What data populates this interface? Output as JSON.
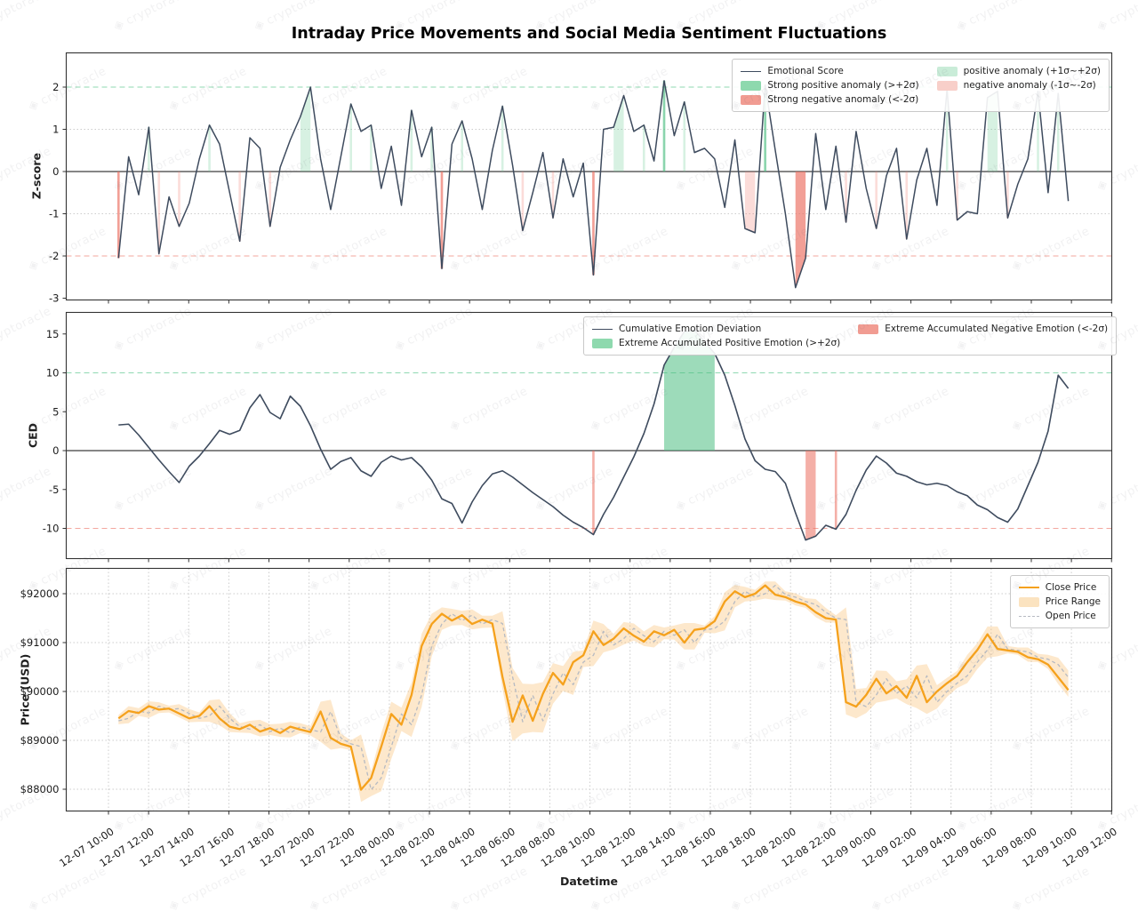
{
  "title": "Intraday Price Movements and Social Media Sentiment Fluctuations",
  "watermark": {
    "text": "cryptoracle",
    "glyph": "◈"
  },
  "colors": {
    "sentiment_line": "#3e4b5e",
    "strong_positive_fill": "rgba(77,190,130,0.55)",
    "mild_positive_fill": "rgba(110,205,152,0.28)",
    "strong_negative_fill": "rgba(235,110,95,0.55)",
    "mild_negative_fill": "rgba(240,130,120,0.28)",
    "upper_threshold_line": "#8fd9b2",
    "lower_threshold_line": "#f3a79e",
    "zero_line": "#3f3f3f",
    "grid": "#cccccc",
    "axis": "#333333",
    "close_line": "#f5a11c",
    "price_band_fill": "rgba(248,185,95,0.32)",
    "open_line": "#b6bac2",
    "legend_strong_pos": "#8ed9ae",
    "legend_mild_pos": "#c9ecd8",
    "legend_strong_neg": "#f19c92",
    "legend_mild_neg": "#f8cfc9"
  },
  "xaxis": {
    "label": "Datetime",
    "ticks": [
      "12-07 10:00",
      "12-07 12:00",
      "12-07 14:00",
      "12-07 16:00",
      "12-07 18:00",
      "12-07 20:00",
      "12-07 22:00",
      "12-08 00:00",
      "12-08 02:00",
      "12-08 04:00",
      "12-08 06:00",
      "12-08 08:00",
      "12-08 10:00",
      "12-08 12:00",
      "12-08 14:00",
      "12-08 16:00",
      "12-08 18:00",
      "12-08 20:00",
      "12-08 22:00",
      "12-09 00:00",
      "12-09 02:00",
      "12-09 04:00",
      "12-09 06:00",
      "12-09 08:00",
      "12-09 10:00",
      "12-09 12:00"
    ]
  },
  "panels": {
    "zscore": {
      "ylabel": "Z-score",
      "yticks": [
        "2",
        "1",
        "0",
        "-1",
        "-2",
        "-3"
      ],
      "legend_columns": [
        [
          {
            "swatch": "line",
            "label": "Emotional Score"
          },
          {
            "swatch": "strong_pos",
            "label": "Strong positive anomaly (>+2σ)"
          },
          {
            "swatch": "strong_neg",
            "label": "Strong negative anomaly (<-2σ)"
          }
        ],
        [
          {
            "swatch": "mild_pos",
            "label": "positive anomaly (+1σ~+2σ)"
          },
          {
            "swatch": "mild_neg",
            "label": "negative anomaly (-1σ~-2σ)"
          }
        ]
      ]
    },
    "ced": {
      "ylabel": "CED",
      "yticks": [
        "15",
        "10",
        "5",
        "0",
        "-5",
        "-10"
      ],
      "legend_columns": [
        [
          {
            "swatch": "line",
            "label": "Cumulative Emotion Deviation"
          },
          {
            "swatch": "strong_pos",
            "label": "Extreme Accumulated Positive Emotion (>+2σ)"
          }
        ],
        [
          {
            "swatch": "strong_neg",
            "label": "Extreme Accumulated Negative Emotion (<-2σ)"
          }
        ]
      ]
    },
    "price": {
      "ylabel": "Price (USD)",
      "yticks": [
        "$92000",
        "$91000",
        "$90000",
        "$89000",
        "$88000"
      ],
      "legend_columns": [
        [
          {
            "swatch": "close_line",
            "label": "Close Price"
          },
          {
            "swatch": "band",
            "label": "Price Range"
          },
          {
            "swatch": "open_dash",
            "label": "Open Price"
          }
        ]
      ]
    }
  },
  "chart_data": [
    {
      "type": "line",
      "name": "Emotional Score (Z-score)",
      "ylabel": "Z-score",
      "x_start": "12-07 10:30",
      "x_step_minutes": 30,
      "ylim": [
        -3.05,
        2.8
      ],
      "yticks": [
        2,
        1,
        0,
        -1,
        -2,
        -3
      ],
      "grid_dotted_at": [
        1,
        -1
      ],
      "thresholds": {
        "strong_upper": 2,
        "strong_lower": -2,
        "mild_upper": 1,
        "mild_lower": -1
      },
      "legend_position": "upper right",
      "series": [
        {
          "name": "Emotional Score",
          "values": [
            -2.05,
            0.35,
            -0.55,
            1.05,
            -1.95,
            -0.6,
            -1.3,
            -0.75,
            0.3,
            1.1,
            0.65,
            -0.5,
            -1.65,
            0.8,
            0.55,
            -1.3,
            0.1,
            0.75,
            1.3,
            2.0,
            0.3,
            -0.9,
            0.35,
            1.6,
            0.95,
            1.1,
            -0.4,
            0.6,
            -0.8,
            1.45,
            0.35,
            1.05,
            -2.3,
            0.65,
            1.2,
            0.3,
            -0.9,
            0.5,
            1.55,
            0.15,
            -1.4,
            -0.5,
            0.45,
            -1.1,
            0.3,
            -0.6,
            0.2,
            -2.45,
            1.0,
            1.05,
            1.8,
            0.95,
            1.1,
            0.25,
            2.15,
            0.85,
            1.65,
            0.45,
            0.55,
            0.3,
            -0.85,
            0.75,
            -1.35,
            -1.45,
            2.05,
            0.5,
            -1.0,
            -2.75,
            -2.05,
            0.9,
            -0.9,
            0.6,
            -1.2,
            0.95,
            -0.4,
            -1.35,
            -0.1,
            0.55,
            -1.6,
            -0.2,
            0.55,
            -0.8,
            1.95,
            -1.15,
            -0.95,
            -1.0,
            1.75,
            1.9,
            -1.1,
            -0.3,
            0.3,
            1.9,
            -0.5,
            1.85,
            -0.7
          ]
        }
      ]
    },
    {
      "type": "line",
      "name": "Cumulative Emotion Deviation",
      "ylabel": "CED",
      "x_start": "12-07 10:30",
      "x_step_minutes": 30,
      "ylim": [
        -13.8,
        17.7
      ],
      "yticks": [
        15,
        10,
        5,
        0,
        -5,
        -10
      ],
      "grid_dotted_at": [],
      "thresholds": {
        "strong_upper": 10,
        "strong_lower": -10
      },
      "legend_position": "upper center",
      "series": [
        {
          "name": "Cumulative Emotion Deviation",
          "values": [
            3.3,
            3.4,
            2.0,
            0.4,
            -1.2,
            -2.7,
            -4.1,
            -2.0,
            -0.7,
            0.9,
            2.6,
            2.1,
            2.6,
            5.5,
            7.2,
            4.9,
            4.1,
            7.0,
            5.7,
            3.2,
            0.2,
            -2.4,
            -1.4,
            -0.9,
            -2.6,
            -3.3,
            -1.5,
            -0.7,
            -1.2,
            -0.9,
            -2.1,
            -3.8,
            -6.2,
            -6.8,
            -9.3,
            -6.6,
            -4.5,
            -3.0,
            -2.6,
            -3.4,
            -4.4,
            -5.4,
            -6.3,
            -7.2,
            -8.3,
            -9.2,
            -9.9,
            -10.8,
            -8.2,
            -6.0,
            -3.4,
            -0.8,
            2.2,
            6.0,
            11.0,
            13.3,
            15.3,
            15.5,
            14.0,
            12.5,
            9.7,
            5.8,
            1.5,
            -1.3,
            -2.4,
            -2.7,
            -4.2,
            -8.0,
            -11.5,
            -11.0,
            -9.6,
            -10.1,
            -8.2,
            -5.1,
            -2.5,
            -0.7,
            -1.6,
            -2.9,
            -3.3,
            -4.0,
            -4.4,
            -4.2,
            -4.5,
            -5.3,
            -5.8,
            -7.0,
            -7.6,
            -8.6,
            -9.2,
            -7.5,
            -4.5,
            -1.5,
            2.5,
            9.7,
            8.0
          ]
        }
      ]
    },
    {
      "type": "line",
      "name": "Price (USD)",
      "ylabel": "Price (USD)",
      "x_start": "12-07 10:30",
      "x_step_minutes": 30,
      "ylim": [
        87550,
        92510
      ],
      "yticks": [
        92000,
        91000,
        90000,
        89000,
        88000
      ],
      "grid_dotted_at": [
        92000,
        91000,
        90000,
        89000,
        88000
      ],
      "legend_position": "upper right",
      "series": [
        {
          "name": "Close Price",
          "values": [
            89450,
            89600,
            89560,
            89700,
            89630,
            89650,
            89550,
            89450,
            89500,
            89700,
            89450,
            89280,
            89230,
            89320,
            89180,
            89250,
            89150,
            89280,
            89220,
            89170,
            89590,
            89050,
            88930,
            88870,
            87990,
            88230,
            88870,
            89540,
            89320,
            89930,
            90930,
            91380,
            91590,
            91450,
            91560,
            91380,
            91470,
            91390,
            90300,
            89380,
            89920,
            89400,
            89950,
            90380,
            90140,
            90600,
            90740,
            91230,
            90950,
            91080,
            91290,
            91140,
            91020,
            91230,
            91150,
            91260,
            91000,
            91260,
            91290,
            91440,
            91840,
            92050,
            91930,
            92000,
            92170,
            91980,
            91930,
            91840,
            91780,
            91620,
            91500,
            91470,
            89780,
            89690,
            89930,
            90260,
            89960,
            90110,
            89870,
            90320,
            89780,
            90000,
            90170,
            90320,
            90600,
            90850,
            91170,
            90870,
            90840,
            90810,
            90700,
            90660,
            90550,
            90290,
            90030
          ]
        },
        {
          "name": "Open Price",
          "values": [
            89400,
            89450,
            89600,
            89560,
            89700,
            89630,
            89650,
            89550,
            89450,
            89500,
            89700,
            89450,
            89280,
            89230,
            89320,
            89180,
            89250,
            89150,
            89280,
            89220,
            89170,
            89590,
            89050,
            88930,
            88870,
            87990,
            88230,
            88870,
            89540,
            89320,
            89930,
            90930,
            91380,
            91590,
            91450,
            91560,
            91380,
            91470,
            91390,
            90300,
            89380,
            89920,
            89400,
            89950,
            90380,
            90140,
            90600,
            90740,
            91230,
            90950,
            91080,
            91290,
            91140,
            91020,
            91230,
            91150,
            91260,
            91000,
            91260,
            91290,
            91440,
            91840,
            92050,
            91930,
            92000,
            92170,
            91980,
            91930,
            91840,
            91780,
            91620,
            91500,
            91470,
            89780,
            89690,
            89930,
            90260,
            89960,
            90110,
            89870,
            90320,
            89780,
            90000,
            90170,
            90320,
            90600,
            90850,
            91170,
            90870,
            90840,
            90810,
            90700,
            90660,
            90550,
            90290
          ]
        },
        {
          "name": "Range High",
          "values": [
            89520,
            89700,
            89660,
            89800,
            89780,
            89710,
            89740,
            89640,
            89570,
            89820,
            89840,
            89560,
            89350,
            89400,
            89420,
            89330,
            89340,
            89380,
            89350,
            89290,
            89790,
            89830,
            89140,
            89000,
            89120,
            88370,
            89140,
            89790,
            89670,
            90180,
            91180,
            91590,
            91720,
            91690,
            91650,
            91680,
            91550,
            91550,
            91640,
            90480,
            90160,
            90150,
            90190,
            90580,
            90520,
            90810,
            90840,
            91450,
            91380,
            91180,
            91420,
            91390,
            91230,
            91360,
            91310,
            91350,
            91400,
            91400,
            91350,
            91540,
            92030,
            92180,
            92140,
            92080,
            92250,
            92250,
            92050,
            92010,
            91910,
            91890,
            91710,
            91560,
            91720,
            90050,
            90070,
            90430,
            90420,
            90210,
            90250,
            90530,
            90560,
            90130,
            90280,
            90420,
            90750,
            90990,
            91330,
            91330,
            90930,
            90900,
            90900,
            90770,
            90750,
            90690,
            90430
          ]
        },
        {
          "name": "Range Low",
          "values": [
            89330,
            89350,
            89500,
            89460,
            89560,
            89570,
            89470,
            89370,
            89380,
            89380,
            89310,
            89170,
            89160,
            89150,
            89080,
            89110,
            89070,
            89060,
            89150,
            89100,
            88970,
            88810,
            88840,
            88800,
            87740,
            87860,
            87960,
            88620,
            89190,
            89070,
            89680,
            90720,
            91260,
            91350,
            91360,
            91270,
            91300,
            91310,
            90050,
            88980,
            89140,
            89170,
            89160,
            89750,
            90010,
            89930,
            90500,
            90520,
            90800,
            90860,
            90960,
            91040,
            90930,
            90900,
            91070,
            91060,
            90860,
            90860,
            91200,
            91190,
            91250,
            91720,
            91840,
            91860,
            91900,
            91870,
            91860,
            91760,
            91710,
            91520,
            91410,
            91410,
            89530,
            89450,
            89560,
            89770,
            89810,
            89860,
            89740,
            89660,
            89540,
            89650,
            89890,
            90070,
            90170,
            90460,
            90690,
            90720,
            90780,
            90750,
            90610,
            90600,
            90460,
            90150,
            89890
          ]
        }
      ]
    }
  ]
}
